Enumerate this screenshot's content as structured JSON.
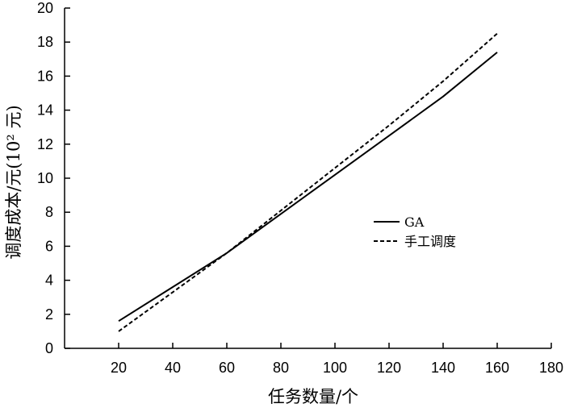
{
  "chart_data": {
    "type": "line",
    "title": "",
    "xlabel": "任务数量/个",
    "ylabel": "调度成本/元(10² 元)",
    "xlim": [
      0,
      180
    ],
    "ylim": [
      0,
      20
    ],
    "xticks": [
      20,
      40,
      60,
      80,
      100,
      120,
      140,
      160,
      180
    ],
    "yticks": [
      0,
      2,
      4,
      6,
      8,
      10,
      12,
      14,
      16,
      18,
      20
    ],
    "grid": false,
    "legend_position": "right-center",
    "series": [
      {
        "name": "GA",
        "style": "solid",
        "color": "#000000",
        "x": [
          20,
          40,
          60,
          80,
          100,
          120,
          140,
          160
        ],
        "y": [
          1.6,
          3.6,
          5.6,
          7.9,
          10.2,
          12.5,
          14.8,
          17.4
        ]
      },
      {
        "name": "手工调度",
        "style": "dashed",
        "color": "#000000",
        "x": [
          20,
          40,
          60,
          80,
          100,
          120,
          140,
          160
        ],
        "y": [
          1.0,
          3.3,
          5.6,
          8.1,
          10.6,
          13.1,
          15.7,
          18.5
        ]
      }
    ]
  }
}
